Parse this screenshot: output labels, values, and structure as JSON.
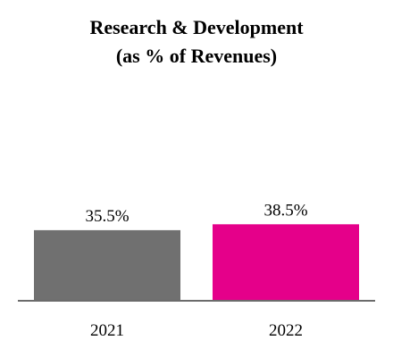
{
  "chart_data": {
    "type": "bar",
    "title_lines": [
      "Research & Development",
      "(as % of Revenues)"
    ],
    "categories": [
      "2021",
      "2022"
    ],
    "values": [
      35.5,
      38.5
    ],
    "data_labels": [
      "35.5%",
      "38.5%"
    ],
    "colors": [
      "#707070",
      "#e5008a"
    ],
    "grid": false,
    "legend": "none"
  }
}
